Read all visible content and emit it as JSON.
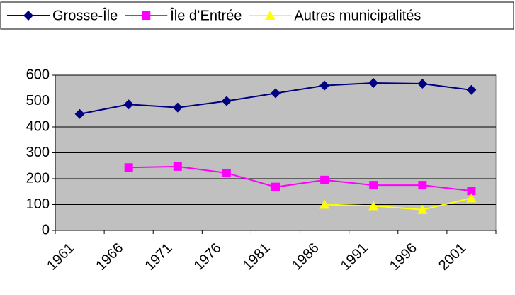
{
  "chart_data": {
    "type": "line",
    "categories": [
      "1961",
      "1966",
      "1971",
      "1976",
      "1981",
      "1986",
      "1991",
      "1996",
      "2001"
    ],
    "series": [
      {
        "name": "Grosse-Île",
        "color": "#000080",
        "marker": "diamond",
        "values": [
          450,
          487,
          475,
          500,
          530,
          560,
          570,
          567,
          543
        ]
      },
      {
        "name": "Île d’Entrée",
        "color": "#ff00ff",
        "marker": "square",
        "values": [
          null,
          243,
          247,
          222,
          168,
          195,
          175,
          175,
          153
        ]
      },
      {
        "name": "Autres municipalités",
        "color": "#ffff00",
        "marker": "triangle",
        "values": [
          null,
          null,
          null,
          null,
          null,
          100,
          95,
          80,
          125
        ]
      }
    ],
    "ylim": [
      0,
      600
    ],
    "yticks": [
      0,
      100,
      200,
      300,
      400,
      500,
      600
    ],
    "grid": true,
    "legend": "top"
  }
}
